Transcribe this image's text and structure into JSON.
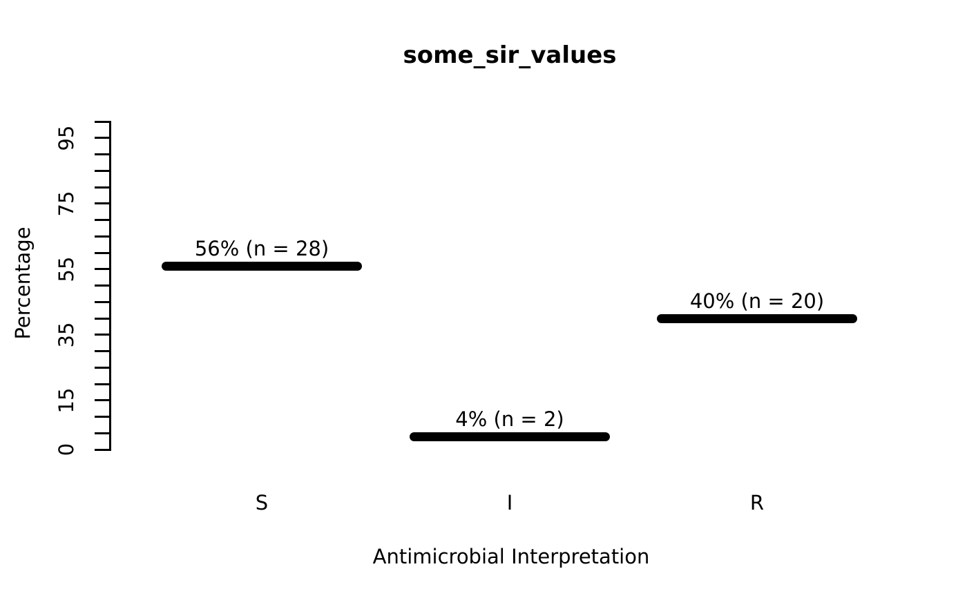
{
  "chart_data": {
    "type": "bar",
    "title": "some_sir_values",
    "xlabel": "Antimicrobial Interpretation",
    "ylabel": "Percentage",
    "categories": [
      "S",
      "I",
      "R"
    ],
    "values": [
      56,
      4,
      40
    ],
    "counts": [
      28,
      2,
      20
    ],
    "bar_labels": [
      "56% (n = 28)",
      "4% (n = 2)",
      "40% (n = 20)"
    ],
    "ylim": [
      0,
      100
    ],
    "ytick_step": 5,
    "ytick_labeled_values": [
      0,
      15,
      35,
      55,
      75,
      95
    ],
    "grid": false,
    "legend": "none",
    "bar_color": "#000000",
    "text_color": "#000000",
    "background_color": "#ffffff"
  }
}
